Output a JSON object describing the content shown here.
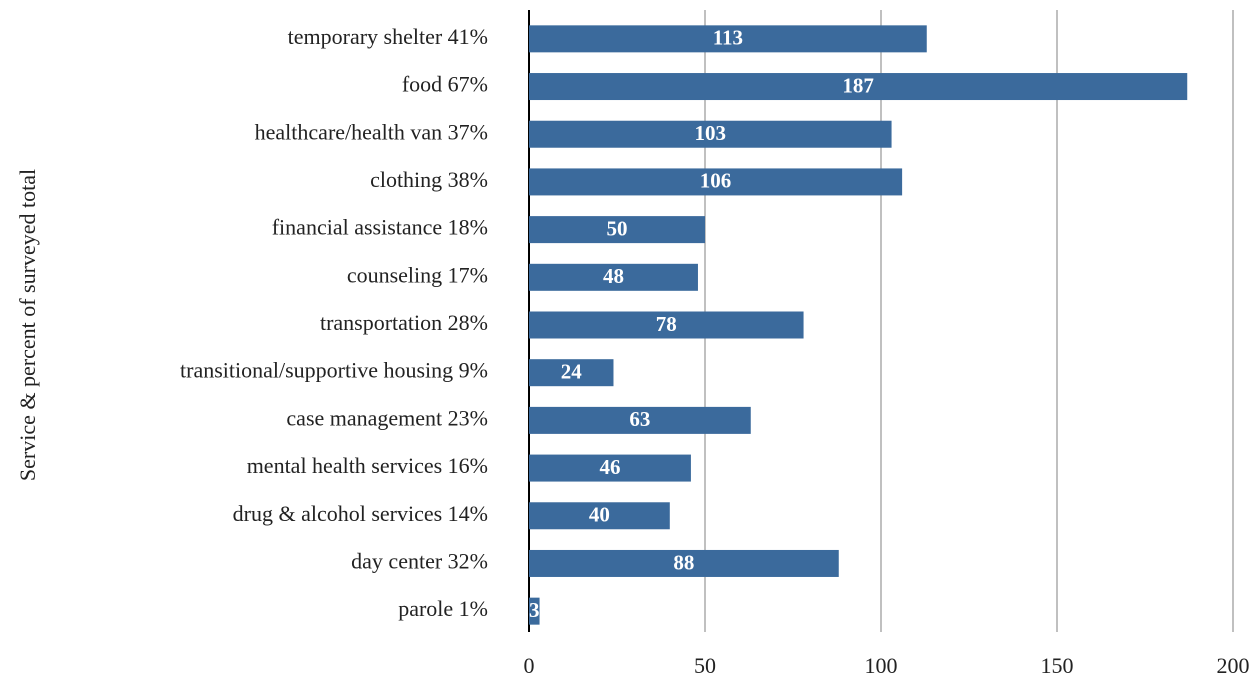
{
  "chart_data": {
    "type": "hbar",
    "y_label": "Service & percent of surveyed total",
    "categories": [
      "temporary shelter 41%",
      "food 67%",
      "healthcare/health van 37%",
      "clothing 38%",
      "financial assistance 18%",
      "counseling 17%",
      "transportation 28%",
      "transitional/supportive housing 9%",
      "case management 23%",
      "mental health services 16%",
      "drug & alcohol services 14%",
      "day center 32%",
      "parole 1%"
    ],
    "values": [
      113,
      187,
      103,
      106,
      50,
      48,
      78,
      24,
      63,
      46,
      40,
      88,
      3
    ],
    "color": "#3b6a9c",
    "xlim": [
      0,
      200
    ],
    "xticks": [
      0,
      50,
      100,
      150,
      200
    ],
    "grid": true
  }
}
